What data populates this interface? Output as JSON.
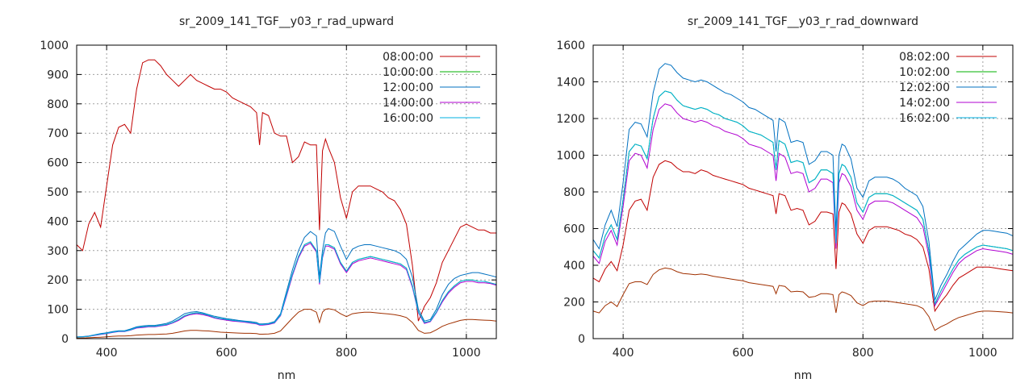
{
  "chart_data": [
    {
      "type": "line",
      "title": "sr_2009_141_TGF__y03_r_rad_upward",
      "xlabel": "nm",
      "ylabel": "",
      "xlim": [
        350,
        1050
      ],
      "ylim": [
        0,
        1000
      ],
      "xticks": [
        400,
        600,
        800,
        1000
      ],
      "yticks": [
        0,
        100,
        200,
        300,
        400,
        500,
        600,
        700,
        800,
        900,
        1000
      ],
      "grid": true,
      "legend_position": "top-right",
      "x": [
        350,
        360,
        370,
        380,
        390,
        400,
        410,
        420,
        430,
        440,
        450,
        460,
        470,
        480,
        490,
        500,
        510,
        520,
        530,
        540,
        550,
        560,
        570,
        580,
        590,
        600,
        610,
        620,
        630,
        640,
        650,
        655,
        660,
        670,
        680,
        690,
        700,
        710,
        720,
        730,
        740,
        750,
        755,
        760,
        765,
        770,
        780,
        790,
        800,
        810,
        820,
        830,
        840,
        850,
        860,
        870,
        880,
        890,
        900,
        910,
        920,
        930,
        940,
        950,
        960,
        970,
        980,
        990,
        1000,
        1010,
        1020,
        1030,
        1040,
        1050
      ],
      "series": [
        {
          "name": "08:00:00",
          "color": "#c00000",
          "values": [
            320,
            300,
            390,
            430,
            380,
            520,
            660,
            720,
            730,
            700,
            850,
            940,
            950,
            950,
            930,
            900,
            880,
            860,
            880,
            900,
            880,
            870,
            860,
            850,
            850,
            840,
            820,
            810,
            800,
            790,
            770,
            660,
            770,
            760,
            700,
            690,
            690,
            600,
            620,
            670,
            660,
            660,
            370,
            640,
            680,
            650,
            600,
            480,
            410,
            500,
            520,
            520,
            520,
            510,
            500,
            480,
            470,
            440,
            390,
            250,
            60,
            110,
            140,
            190,
            260,
            300,
            340,
            380,
            390,
            380,
            370,
            370,
            360,
            360
          ]
        },
        {
          "name": "10:00:00",
          "color": "#00b000",
          "values": [
            5,
            6,
            8,
            12,
            15,
            18,
            22,
            25,
            25,
            30,
            38,
            40,
            42,
            42,
            45,
            48,
            55,
            65,
            78,
            85,
            88,
            85,
            80,
            72,
            68,
            65,
            62,
            60,
            58,
            55,
            52,
            48,
            48,
            50,
            55,
            80,
            150,
            220,
            280,
            320,
            330,
            300,
            190,
            280,
            320,
            320,
            310,
            260,
            230,
            260,
            270,
            275,
            280,
            275,
            270,
            265,
            260,
            255,
            240,
            180,
            90,
            55,
            60,
            90,
            130,
            160,
            180,
            195,
            200,
            200,
            195,
            195,
            190,
            185
          ]
        },
        {
          "name": "12:00:00",
          "color": "#0070c0",
          "values": [
            6,
            7,
            9,
            13,
            17,
            20,
            24,
            27,
            27,
            33,
            40,
            43,
            45,
            45,
            48,
            52,
            60,
            72,
            85,
            90,
            92,
            88,
            82,
            76,
            72,
            68,
            65,
            62,
            60,
            58,
            55,
            50,
            50,
            52,
            58,
            85,
            160,
            235,
            300,
            345,
            365,
            350,
            210,
            300,
            360,
            375,
            365,
            315,
            270,
            305,
            315,
            320,
            320,
            315,
            310,
            305,
            300,
            290,
            270,
            210,
            100,
            60,
            65,
            100,
            150,
            185,
            205,
            215,
            220,
            225,
            225,
            220,
            215,
            210
          ]
        },
        {
          "name": "14:00:00",
          "color": "#b000d0",
          "values": [
            5,
            6,
            8,
            11,
            14,
            17,
            21,
            24,
            24,
            29,
            36,
            38,
            40,
            40,
            43,
            46,
            53,
            62,
            75,
            82,
            85,
            82,
            77,
            70,
            66,
            63,
            60,
            58,
            56,
            53,
            50,
            46,
            46,
            48,
            53,
            78,
            145,
            215,
            275,
            315,
            325,
            295,
            185,
            275,
            315,
            315,
            305,
            255,
            225,
            255,
            265,
            270,
            275,
            270,
            265,
            260,
            255,
            250,
            235,
            175,
            88,
            52,
            58,
            88,
            125,
            155,
            175,
            190,
            195,
            195,
            190,
            190,
            188,
            182
          ]
        },
        {
          "name": "16:00:00",
          "color": "#00b0e0",
          "values": [
            5,
            6,
            8,
            12,
            15,
            18,
            22,
            25,
            25,
            30,
            38,
            40,
            42,
            42,
            45,
            48,
            55,
            65,
            78,
            85,
            88,
            85,
            80,
            72,
            68,
            65,
            62,
            60,
            58,
            55,
            52,
            48,
            48,
            50,
            55,
            80,
            150,
            220,
            280,
            320,
            330,
            300,
            190,
            280,
            320,
            320,
            310,
            260,
            230,
            260,
            270,
            275,
            280,
            275,
            270,
            265,
            260,
            255,
            240,
            180,
            90,
            55,
            60,
            90,
            130,
            160,
            180,
            195,
            200,
            200,
            195,
            195,
            190,
            185
          ]
        },
        {
          "name": "",
          "color": "#a03000",
          "values": [
            2,
            2,
            3,
            4,
            5,
            6,
            8,
            9,
            9,
            10,
            12,
            13,
            14,
            14,
            15,
            16,
            18,
            22,
            26,
            28,
            28,
            27,
            26,
            24,
            22,
            21,
            20,
            19,
            18,
            18,
            17,
            15,
            15,
            16,
            18,
            26,
            48,
            70,
            90,
            100,
            100,
            90,
            55,
            90,
            100,
            102,
            98,
            85,
            75,
            85,
            88,
            90,
            90,
            88,
            86,
            84,
            82,
            78,
            72,
            55,
            28,
            18,
            20,
            30,
            42,
            50,
            56,
            62,
            65,
            65,
            64,
            63,
            62,
            60
          ]
        }
      ]
    },
    {
      "type": "line",
      "title": "sr_2009_141_TGF__y03_r_rad_downward",
      "xlabel": "nm",
      "ylabel": "",
      "xlim": [
        350,
        1050
      ],
      "ylim": [
        0,
        1600
      ],
      "xticks": [
        400,
        600,
        800,
        1000
      ],
      "yticks": [
        0,
        200,
        400,
        600,
        800,
        1000,
        1200,
        1400,
        1600
      ],
      "grid": true,
      "legend_position": "top-right",
      "x": [
        350,
        360,
        370,
        380,
        390,
        400,
        410,
        420,
        430,
        440,
        450,
        460,
        470,
        480,
        490,
        500,
        510,
        520,
        530,
        540,
        550,
        560,
        570,
        580,
        590,
        600,
        610,
        620,
        630,
        640,
        650,
        655,
        660,
        670,
        680,
        690,
        700,
        710,
        720,
        730,
        740,
        750,
        755,
        760,
        765,
        770,
        780,
        790,
        800,
        810,
        820,
        830,
        840,
        850,
        860,
        870,
        880,
        890,
        900,
        910,
        920,
        930,
        940,
        950,
        960,
        970,
        980,
        990,
        1000,
        1010,
        1020,
        1030,
        1040,
        1050
      ],
      "series": [
        {
          "name": "08:02:00",
          "color": "#c00000",
          "values": [
            330,
            310,
            380,
            420,
            370,
            510,
            700,
            750,
            760,
            700,
            880,
            950,
            970,
            960,
            930,
            910,
            910,
            900,
            920,
            910,
            890,
            880,
            870,
            860,
            850,
            840,
            820,
            810,
            800,
            790,
            780,
            680,
            790,
            780,
            700,
            710,
            700,
            620,
            640,
            690,
            690,
            680,
            380,
            690,
            740,
            730,
            680,
            570,
            520,
            590,
            610,
            610,
            610,
            600,
            590,
            570,
            560,
            540,
            500,
            380,
            150,
            200,
            240,
            290,
            330,
            350,
            370,
            390,
            390,
            390,
            385,
            380,
            375,
            370
          ]
        },
        {
          "name": "10:02:00",
          "color": "#00b000",
          "values": [
            480,
            440,
            560,
            620,
            540,
            760,
            1020,
            1060,
            1050,
            980,
            1200,
            1320,
            1350,
            1340,
            1300,
            1270,
            1260,
            1250,
            1260,
            1250,
            1230,
            1220,
            1200,
            1190,
            1180,
            1160,
            1130,
            1120,
            1110,
            1090,
            1070,
            920,
            1080,
            1060,
            960,
            970,
            960,
            850,
            870,
            920,
            920,
            900,
            520,
            900,
            950,
            940,
            880,
            740,
            690,
            770,
            790,
            790,
            790,
            780,
            760,
            740,
            720,
            700,
            650,
            480,
            190,
            260,
            320,
            380,
            430,
            460,
            480,
            500,
            510,
            505,
            500,
            495,
            490,
            480
          ]
        },
        {
          "name": "12:02:00",
          "color": "#0070c0",
          "values": [
            540,
            490,
            620,
            700,
            610,
            850,
            1140,
            1180,
            1170,
            1100,
            1340,
            1470,
            1500,
            1490,
            1450,
            1420,
            1410,
            1400,
            1410,
            1400,
            1380,
            1360,
            1340,
            1330,
            1310,
            1290,
            1260,
            1250,
            1230,
            1210,
            1190,
            1020,
            1200,
            1180,
            1070,
            1080,
            1070,
            950,
            970,
            1020,
            1020,
            1000,
            580,
            1000,
            1060,
            1050,
            980,
            820,
            770,
            860,
            880,
            880,
            880,
            870,
            850,
            820,
            800,
            780,
            720,
            530,
            210,
            290,
            350,
            420,
            480,
            510,
            540,
            570,
            590,
            590,
            585,
            580,
            575,
            560
          ]
        },
        {
          "name": "14:02:00",
          "color": "#b000d0",
          "values": [
            450,
            410,
            530,
            590,
            510,
            720,
            970,
            1010,
            1000,
            930,
            1140,
            1250,
            1280,
            1270,
            1230,
            1200,
            1190,
            1180,
            1190,
            1180,
            1160,
            1150,
            1130,
            1120,
            1110,
            1090,
            1060,
            1050,
            1040,
            1020,
            1000,
            860,
            1010,
            990,
            900,
            910,
            900,
            800,
            820,
            870,
            870,
            850,
            490,
            850,
            900,
            890,
            830,
            700,
            650,
            730,
            750,
            750,
            750,
            740,
            720,
            700,
            680,
            660,
            610,
            450,
            180,
            240,
            300,
            360,
            410,
            440,
            460,
            480,
            490,
            485,
            480,
            475,
            470,
            460
          ]
        },
        {
          "name": "16:02:00",
          "color": "#00b0e0",
          "values": [
            480,
            440,
            560,
            620,
            540,
            760,
            1020,
            1060,
            1050,
            980,
            1200,
            1320,
            1350,
            1340,
            1300,
            1270,
            1260,
            1250,
            1260,
            1250,
            1230,
            1220,
            1200,
            1190,
            1180,
            1160,
            1130,
            1120,
            1110,
            1090,
            1070,
            920,
            1080,
            1060,
            960,
            970,
            960,
            850,
            870,
            920,
            920,
            900,
            520,
            900,
            950,
            940,
            880,
            740,
            690,
            770,
            790,
            790,
            790,
            780,
            760,
            740,
            720,
            700,
            650,
            480,
            190,
            260,
            320,
            380,
            430,
            460,
            480,
            500,
            510,
            505,
            500,
            495,
            490,
            480
          ]
        },
        {
          "name": "",
          "color": "#a03000",
          "values": [
            150,
            140,
            180,
            200,
            175,
            240,
            300,
            310,
            310,
            295,
            350,
            375,
            385,
            380,
            365,
            355,
            352,
            348,
            352,
            348,
            340,
            335,
            330,
            325,
            320,
            315,
            305,
            300,
            295,
            290,
            285,
            245,
            290,
            285,
            255,
            258,
            255,
            225,
            230,
            245,
            245,
            240,
            140,
            240,
            255,
            250,
            235,
            195,
            180,
            200,
            205,
            205,
            205,
            200,
            195,
            190,
            185,
            180,
            165,
            120,
            45,
            65,
            80,
            100,
            115,
            125,
            135,
            145,
            150,
            150,
            148,
            146,
            144,
            140
          ]
        }
      ]
    }
  ]
}
